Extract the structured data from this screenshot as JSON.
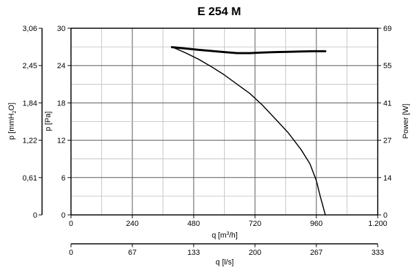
{
  "chart_data": {
    "type": "line",
    "title": "E 254 M",
    "x_axis": {
      "label_main": "q [m",
      "label_sup": "3",
      "label_end": "/h]",
      "ticks": [
        "0",
        "240",
        "480",
        "720",
        "960",
        "1.200"
      ],
      "range": [
        0,
        1200
      ]
    },
    "x2_axis": {
      "label": "q [l/s]",
      "ticks": [
        "0",
        "67",
        "133",
        "200",
        "267",
        "333"
      ],
      "range": [
        0,
        333
      ]
    },
    "y_axis": {
      "label": "p [Pa]",
      "ticks": [
        "0",
        "6",
        "12",
        "18",
        "24",
        "30"
      ],
      "range": [
        0,
        30
      ]
    },
    "y_far_left": {
      "label_main": "p [mmH",
      "label_sub": "2",
      "label_end": "O]",
      "ticks": [
        "0",
        "0,61",
        "1,22",
        "1,84",
        "2,45",
        "3,06"
      ]
    },
    "y_right": {
      "label": "Power [W]",
      "ticks": [
        "0",
        "14",
        "27",
        "41",
        "55",
        "69"
      ],
      "range": [
        0,
        69
      ]
    },
    "grid": true,
    "series": [
      {
        "axis": "left",
        "points": [
          [
            395,
            27.0
          ],
          [
            450,
            26.0
          ],
          [
            500,
            25.0
          ],
          [
            550,
            23.8
          ],
          [
            600,
            22.5
          ],
          [
            650,
            21.0
          ],
          [
            700,
            19.5
          ],
          [
            750,
            17.6
          ],
          [
            800,
            15.4
          ],
          [
            850,
            13.2
          ],
          [
            900,
            10.5
          ],
          [
            935,
            8.2
          ],
          [
            960,
            5.5
          ],
          [
            975,
            3.0
          ],
          [
            995,
            0
          ]
        ]
      },
      {
        "axis": "right",
        "points": [
          [
            395,
            62.0
          ],
          [
            450,
            61.5
          ],
          [
            500,
            61.0
          ],
          [
            550,
            60.6
          ],
          [
            600,
            60.2
          ],
          [
            650,
            59.8
          ],
          [
            700,
            59.8
          ],
          [
            750,
            60.0
          ],
          [
            800,
            60.2
          ],
          [
            850,
            60.3
          ],
          [
            900,
            60.4
          ],
          [
            950,
            60.5
          ],
          [
            995,
            60.5
          ]
        ]
      }
    ]
  }
}
